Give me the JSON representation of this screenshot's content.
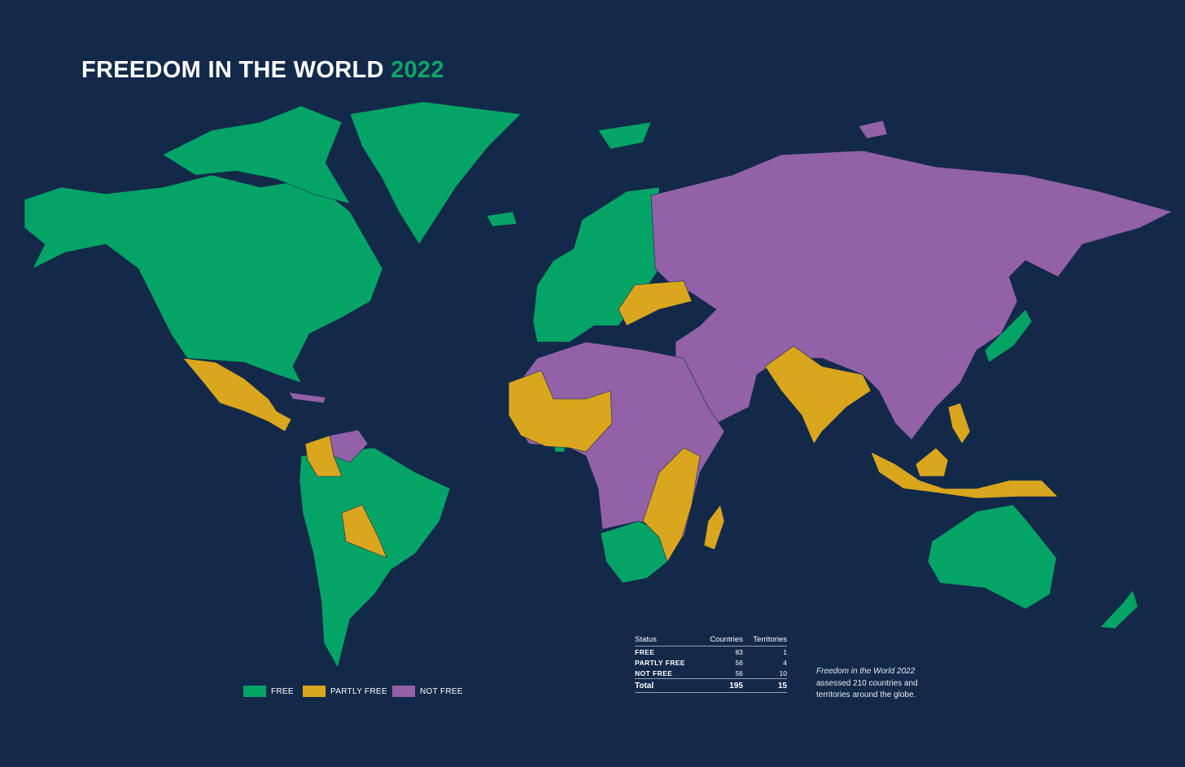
{
  "title": {
    "main": "FREEDOM IN THE WORLD",
    "year": "2022"
  },
  "colors": {
    "background": "#13294a",
    "free": "#04a366",
    "partly_free": "#d9a61e",
    "not_free": "#9261a8"
  },
  "legend": [
    {
      "label": "FREE",
      "color": "#04a366"
    },
    {
      "label": "PARTLY FREE",
      "color": "#d9a61e"
    },
    {
      "label": "NOT FREE",
      "color": "#9261a8"
    }
  ],
  "table": {
    "headers": [
      "Status",
      "Countries",
      "Territories"
    ],
    "rows": [
      {
        "status": "FREE",
        "countries": "83",
        "territories": "1"
      },
      {
        "status": "PARTLY FREE",
        "countries": "56",
        "territories": "4"
      },
      {
        "status": "NOT FREE",
        "countries": "56",
        "territories": "10"
      }
    ],
    "total": {
      "status": "Total",
      "countries": "195",
      "territories": "15"
    }
  },
  "note": {
    "italic": "Freedom in the World 2022",
    "text": "assessed 210 countries and territories around the globe."
  }
}
